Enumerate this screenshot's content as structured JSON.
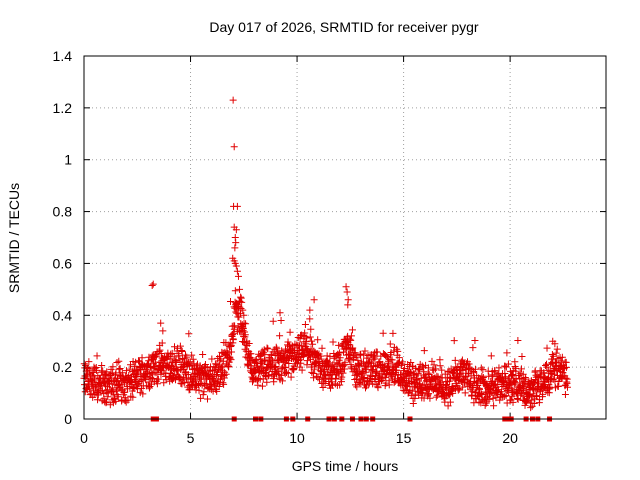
{
  "chart_data": {
    "type": "scatter",
    "title": "Day 017 of 2026, SRMTID for receiver pygr",
    "xlabel": "GPS time / hours",
    "ylabel": "SRMTID / TECUs",
    "xlim": [
      0,
      24.5
    ],
    "ylim": [
      0,
      1.4
    ],
    "x_ticks": [
      0,
      5,
      10,
      15,
      20
    ],
    "y_ticks": [
      0,
      0.2,
      0.4,
      0.6,
      0.8,
      1,
      1.2,
      1.4
    ],
    "x_tick_labels": [
      "0",
      "5",
      "10",
      "15",
      "20"
    ],
    "y_tick_labels": [
      "0",
      "0.2",
      "0.4",
      "0.6",
      "0.8",
      "1",
      "1.2",
      "1.4"
    ],
    "grid": true,
    "marker": "plus",
    "color": "#e00000",
    "series": [
      {
        "name": "SRMTID",
        "profile": [
          [
            0.0,
            0.15
          ],
          [
            0.5,
            0.14
          ],
          [
            1.0,
            0.12
          ],
          [
            1.5,
            0.14
          ],
          [
            2.0,
            0.13
          ],
          [
            2.5,
            0.16
          ],
          [
            3.0,
            0.19
          ],
          [
            3.5,
            0.21
          ],
          [
            4.0,
            0.2
          ],
          [
            4.5,
            0.21
          ],
          [
            5.0,
            0.17
          ],
          [
            5.5,
            0.15
          ],
          [
            6.0,
            0.16
          ],
          [
            6.5,
            0.19
          ],
          [
            6.9,
            0.28
          ],
          [
            7.1,
            0.42
          ],
          [
            7.4,
            0.38
          ],
          [
            7.7,
            0.24
          ],
          [
            8.0,
            0.18
          ],
          [
            8.5,
            0.2
          ],
          [
            9.0,
            0.22
          ],
          [
            9.5,
            0.21
          ],
          [
            10.0,
            0.24
          ],
          [
            10.5,
            0.27
          ],
          [
            11.0,
            0.2
          ],
          [
            11.5,
            0.18
          ],
          [
            12.0,
            0.2
          ],
          [
            12.4,
            0.28
          ],
          [
            12.8,
            0.18
          ],
          [
            13.5,
            0.19
          ],
          [
            14.0,
            0.18
          ],
          [
            14.5,
            0.2
          ],
          [
            15.0,
            0.17
          ],
          [
            15.5,
            0.13
          ],
          [
            16.0,
            0.15
          ],
          [
            16.5,
            0.14
          ],
          [
            17.0,
            0.12
          ],
          [
            17.5,
            0.16
          ],
          [
            18.0,
            0.17
          ],
          [
            18.5,
            0.12
          ],
          [
            19.0,
            0.11
          ],
          [
            19.5,
            0.14
          ],
          [
            20.0,
            0.12
          ],
          [
            20.3,
            0.15
          ],
          [
            20.7,
            0.1
          ],
          [
            21.0,
            0.1
          ],
          [
            21.6,
            0.15
          ],
          [
            22.0,
            0.19
          ],
          [
            22.4,
            0.18
          ],
          [
            22.7,
            0.15
          ]
        ],
        "outliers": [
          [
            3.2,
            0.515
          ],
          [
            3.25,
            0.52
          ],
          [
            7.0,
            1.23
          ],
          [
            7.05,
            1.05
          ],
          [
            7.02,
            0.82
          ],
          [
            7.2,
            0.82
          ],
          [
            7.05,
            0.74
          ],
          [
            7.15,
            0.73
          ],
          [
            7.1,
            0.7
          ],
          [
            7.12,
            0.68
          ],
          [
            7.08,
            0.66
          ],
          [
            6.98,
            0.62
          ],
          [
            7.05,
            0.61
          ],
          [
            7.1,
            0.6
          ],
          [
            7.15,
            0.59
          ],
          [
            7.2,
            0.57
          ],
          [
            7.25,
            0.55
          ],
          [
            7.3,
            0.5
          ],
          [
            7.35,
            0.47
          ],
          [
            7.4,
            0.45
          ],
          [
            7.45,
            0.42
          ],
          [
            7.5,
            0.4
          ],
          [
            12.3,
            0.51
          ],
          [
            12.35,
            0.49
          ],
          [
            12.4,
            0.46
          ],
          [
            12.38,
            0.44
          ],
          [
            10.8,
            0.46
          ],
          [
            10.6,
            0.42
          ],
          [
            9.2,
            0.41
          ],
          [
            9.25,
            0.38
          ],
          [
            3.6,
            0.37
          ],
          [
            3.7,
            0.34
          ],
          [
            14.5,
            0.33
          ],
          [
            22.0,
            0.3
          ],
          [
            22.1,
            0.29
          ]
        ]
      }
    ],
    "data_gaps_at_zero": [
      3.25,
      3.4,
      7.05,
      8.05,
      8.3,
      9.5,
      9.8,
      10.5,
      11.5,
      11.75,
      12.1,
      12.6,
      13.0,
      13.25,
      13.55,
      15.3,
      19.75,
      19.85,
      19.95,
      20.05,
      20.75,
      21.05,
      21.3,
      21.85
    ]
  }
}
